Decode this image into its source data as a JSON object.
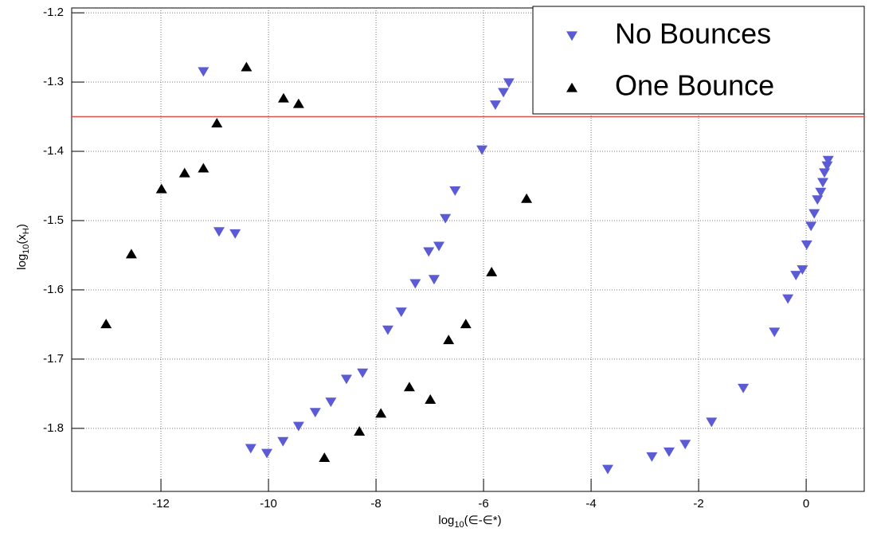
{
  "chart_data": {
    "type": "scatter",
    "xlabel": [
      "log",
      "10",
      "(∈-∈*)"
    ],
    "ylabel": [
      "log",
      "10",
      "(x",
      "H",
      ")"
    ],
    "xlim": [
      -13.66,
      1.08
    ],
    "ylim": [
      -1.891,
      -1.193
    ],
    "xticks": [
      -12,
      -10,
      -8,
      -6,
      -4,
      -2,
      0
    ],
    "yticks": [
      -1.8,
      -1.7,
      -1.6,
      -1.5,
      -1.4,
      -1.3,
      -1.2
    ],
    "grid": true,
    "legend": "top-right",
    "reference_line": {
      "value": -1.35,
      "color": "#d9534f"
    },
    "series": [
      {
        "name": "No Bounces",
        "color": "#5b5bd6",
        "marker": "triangle-down",
        "x": [
          -11.21,
          -10.92,
          -10.62,
          -10.33,
          -10.03,
          -9.73,
          -9.44,
          -9.13,
          -8.84,
          -8.55,
          -8.25,
          -7.78,
          -7.53,
          -7.27,
          -7.02,
          -6.92,
          -6.83,
          -6.71,
          -6.53,
          -6.03,
          -5.78,
          -5.63,
          -5.53,
          -3.69,
          -2.87,
          -2.55,
          -2.25,
          -1.76,
          -1.17,
          -0.59,
          -0.34,
          -0.19,
          -0.07,
          0.01,
          0.09,
          0.15,
          0.21,
          0.27,
          0.31,
          0.34,
          0.39,
          0.41
        ],
        "values": [
          -1.285,
          -1.516,
          -1.519,
          -1.829,
          -1.836,
          -1.819,
          -1.797,
          -1.777,
          -1.762,
          -1.729,
          -1.72,
          -1.658,
          -1.632,
          -1.591,
          -1.545,
          -1.585,
          -1.537,
          -1.497,
          -1.457,
          -1.398,
          -1.333,
          -1.315,
          -1.301,
          -1.859,
          -1.841,
          -1.834,
          -1.823,
          -1.791,
          -1.742,
          -1.661,
          -1.613,
          -1.579,
          -1.571,
          -1.535,
          -1.508,
          -1.49,
          -1.47,
          -1.459,
          -1.445,
          -1.431,
          -1.421,
          -1.413
        ]
      },
      {
        "name": "One Bounce",
        "color": "#000000",
        "marker": "triangle-up",
        "x": [
          -13.02,
          -12.55,
          -11.99,
          -11.56,
          -11.21,
          -10.96,
          -10.41,
          -9.72,
          -9.44,
          -8.96,
          -8.31,
          -7.91,
          -7.38,
          -6.99,
          -6.65,
          -6.33,
          -5.85,
          -5.2
        ],
        "values": [
          -1.649,
          -1.548,
          -1.454,
          -1.431,
          -1.424,
          -1.359,
          -1.278,
          -1.323,
          -1.331,
          -1.842,
          -1.804,
          -1.778,
          -1.74,
          -1.758,
          -1.672,
          -1.649,
          -1.574,
          -1.468
        ]
      }
    ]
  }
}
